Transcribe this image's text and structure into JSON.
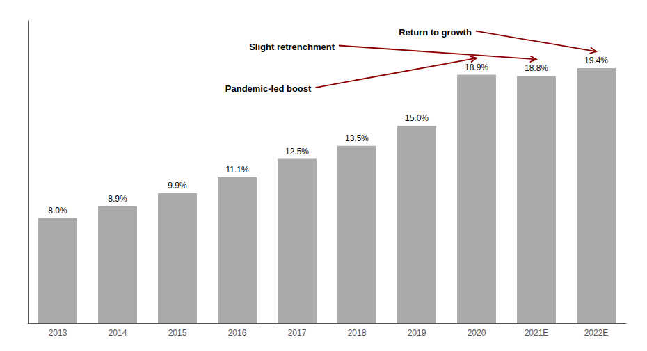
{
  "chart_data": {
    "type": "bar",
    "categories": [
      "2013",
      "2014",
      "2015",
      "2016",
      "2017",
      "2018",
      "2019",
      "2020",
      "2021E",
      "2022E"
    ],
    "values": [
      8.0,
      8.9,
      9.9,
      11.1,
      12.5,
      13.5,
      15.0,
      18.9,
      18.8,
      19.4
    ],
    "value_labels": [
      "8.0%",
      "8.9%",
      "9.9%",
      "11.1%",
      "12.5%",
      "13.5%",
      "15.0%",
      "18.9%",
      "18.8%",
      "19.4%"
    ],
    "color": "#aaaaaa",
    "ylim": [
      0,
      23
    ],
    "yticks": [],
    "tick_labels": "x",
    "data_labels": true,
    "grid": false,
    "annotations": [
      {
        "text": "Pandemic-led boost",
        "x": "2020",
        "color": "#8b0000"
      },
      {
        "text": "Slight retrenchment",
        "x": "2021E",
        "color": "#8b0000"
      },
      {
        "text": "Return to growth",
        "x": "2022E",
        "color": "#8b0000"
      }
    ]
  }
}
